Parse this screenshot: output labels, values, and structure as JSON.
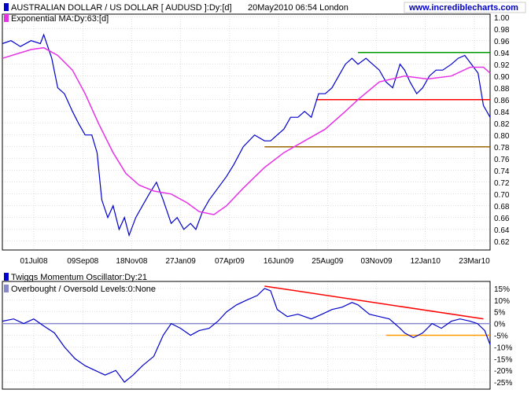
{
  "header": {
    "symbol_title": "AUSTRALIAN DOLLAR / US DOLLAR [ AUDUSD ]:Dy:[d]",
    "datetime": "20May2010 06:54 London",
    "site": "www.incrediblecharts.com",
    "ma_label": "Exponential MA:Dy:63:[d]"
  },
  "osc_header": {
    "osc_label": "Twiggs Momentum Oscillator:Dy:21",
    "levels_label": "Overbought / Oversold Levels:0:None"
  },
  "colors": {
    "price": "#0000cc",
    "ma": "#e633e6",
    "green_line": "#009900",
    "red_line": "#ff0000",
    "brown_line": "#996600",
    "orange_line": "#ff9900",
    "zero_line": "#8888cc",
    "grid": "#c0c0c0",
    "axis_text": "#000000"
  },
  "chart_data": [
    {
      "type": "line",
      "title": "AUSTRALIAN DOLLAR / US DOLLAR [ AUDUSD ]:Dy:[d]",
      "x_tick_labels": [
        "01Jul08",
        "09Sep08",
        "18Nov08",
        "27Jan09",
        "07Apr09",
        "16Jun09",
        "25Aug09",
        "03Nov09",
        "12Jan10",
        "23Mar10"
      ],
      "y_ticks": [
        "0.62",
        "0.64",
        "0.66",
        "0.68",
        "0.70",
        "0.72",
        "0.74",
        "0.76",
        "0.78",
        "0.80",
        "0.82",
        "0.84",
        "0.86",
        "0.88",
        "0.90",
        "0.92",
        "0.94",
        "0.96",
        "0.98",
        "1.00"
      ],
      "ylim": [
        0.605,
        1.005
      ],
      "xlim": [
        "2008-05-19",
        "2010-05-20"
      ],
      "series": [
        {
          "name": "AUSTRALIAN DOLLAR / US DOLLAR [ AUDUSD ]:Dy:[d]",
          "role": "price",
          "x": [
            "2008-05-19",
            "2008-06-01",
            "2008-06-15",
            "2008-07-01",
            "2008-07-15",
            "2008-07-20",
            "2008-08-01",
            "2008-08-10",
            "2008-08-20",
            "2008-09-01",
            "2008-09-10",
            "2008-09-20",
            "2008-09-30",
            "2008-10-08",
            "2008-10-15",
            "2008-10-24",
            "2008-11-01",
            "2008-11-10",
            "2008-11-18",
            "2008-11-25",
            "2008-12-05",
            "2008-12-15",
            "2008-12-25",
            "2009-01-05",
            "2009-01-15",
            "2009-01-27",
            "2009-02-05",
            "2009-02-15",
            "2009-02-25",
            "2009-03-05",
            "2009-03-15",
            "2009-03-25",
            "2009-04-07",
            "2009-04-20",
            "2009-05-01",
            "2009-05-15",
            "2009-06-01",
            "2009-06-16",
            "2009-06-25",
            "2009-07-05",
            "2009-07-15",
            "2009-07-25",
            "2009-08-05",
            "2009-08-15",
            "2009-08-25",
            "2009-09-05",
            "2009-09-15",
            "2009-09-25",
            "2009-10-05",
            "2009-10-15",
            "2009-10-25",
            "2009-11-03",
            "2009-11-15",
            "2009-11-25",
            "2009-12-05",
            "2009-12-15",
            "2009-12-25",
            "2010-01-05",
            "2010-01-12",
            "2010-01-20",
            "2010-01-30",
            "2010-02-08",
            "2010-02-18",
            "2010-02-28",
            "2010-03-10",
            "2010-03-23",
            "2010-04-02",
            "2010-04-12",
            "2010-04-22",
            "2010-05-02",
            "2010-05-10",
            "2010-05-20"
          ],
          "values": [
            0.955,
            0.96,
            0.95,
            0.96,
            0.955,
            0.97,
            0.93,
            0.88,
            0.87,
            0.84,
            0.82,
            0.8,
            0.8,
            0.77,
            0.69,
            0.66,
            0.68,
            0.64,
            0.66,
            0.63,
            0.66,
            0.68,
            0.7,
            0.72,
            0.69,
            0.65,
            0.66,
            0.64,
            0.65,
            0.64,
            0.67,
            0.69,
            0.71,
            0.73,
            0.75,
            0.78,
            0.8,
            0.79,
            0.79,
            0.8,
            0.81,
            0.83,
            0.83,
            0.84,
            0.83,
            0.87,
            0.87,
            0.88,
            0.9,
            0.92,
            0.93,
            0.92,
            0.93,
            0.92,
            0.91,
            0.89,
            0.88,
            0.92,
            0.91,
            0.89,
            0.87,
            0.88,
            0.9,
            0.91,
            0.91,
            0.92,
            0.93,
            0.935,
            0.92,
            0.905,
            0.85,
            0.83
          ]
        },
        {
          "name": "Exponential MA:Dy:63:[d]",
          "role": "ma",
          "x": [
            "2008-05-19",
            "2008-07-01",
            "2008-07-20",
            "2008-08-10",
            "2008-09-01",
            "2008-09-20",
            "2008-10-10",
            "2008-11-01",
            "2008-11-20",
            "2008-12-10",
            "2009-01-01",
            "2009-01-27",
            "2009-02-20",
            "2009-03-10",
            "2009-04-01",
            "2009-04-20",
            "2009-05-15",
            "2009-06-16",
            "2009-07-15",
            "2009-08-15",
            "2009-09-15",
            "2009-10-15",
            "2009-11-03",
            "2009-12-05",
            "2010-01-12",
            "2010-02-15",
            "2010-03-23",
            "2010-04-20",
            "2010-05-10",
            "2010-05-20"
          ],
          "values": [
            0.93,
            0.945,
            0.948,
            0.935,
            0.91,
            0.87,
            0.82,
            0.77,
            0.735,
            0.715,
            0.705,
            0.7,
            0.685,
            0.67,
            0.665,
            0.68,
            0.71,
            0.745,
            0.77,
            0.79,
            0.81,
            0.84,
            0.86,
            0.89,
            0.9,
            0.895,
            0.9,
            0.915,
            0.915,
            0.905
          ]
        }
      ],
      "lines": [
        {
          "role": "green_line",
          "x": [
            "2009-11-03",
            "2010-05-20"
          ],
          "value": 0.94
        },
        {
          "role": "red_line",
          "x": [
            "2009-09-01",
            "2010-05-20"
          ],
          "value": 0.86
        },
        {
          "role": "brown_line",
          "x": [
            "2009-06-16",
            "2010-05-20"
          ],
          "value": 0.78
        }
      ]
    },
    {
      "type": "line",
      "title": "Twiggs Momentum Oscillator:Dy:21",
      "y_ticks": [
        "-25%",
        "-20%",
        "-15%",
        "-10%",
        "-5%",
        "0%",
        "5%",
        "10%",
        "15%"
      ],
      "ylim": [
        -28,
        18
      ],
      "xlim": [
        "2008-05-19",
        "2010-05-20"
      ],
      "series": [
        {
          "name": "Twiggs Momentum Oscillator:Dy:21",
          "role": "price",
          "x": [
            "2008-05-19",
            "2008-06-05",
            "2008-06-20",
            "2008-07-05",
            "2008-07-20",
            "2008-08-05",
            "2008-08-20",
            "2008-09-05",
            "2008-09-20",
            "2008-10-05",
            "2008-10-20",
            "2008-11-05",
            "2008-11-18",
            "2008-12-01",
            "2008-12-15",
            "2009-01-01",
            "2009-01-15",
            "2009-01-27",
            "2009-02-10",
            "2009-02-25",
            "2009-03-10",
            "2009-03-25",
            "2009-04-07",
            "2009-04-20",
            "2009-05-05",
            "2009-05-20",
            "2009-06-05",
            "2009-06-16",
            "2009-06-25",
            "2009-07-05",
            "2009-07-20",
            "2009-08-05",
            "2009-08-25",
            "2009-09-10",
            "2009-09-25",
            "2009-10-10",
            "2009-10-25",
            "2009-11-03",
            "2009-11-20",
            "2009-12-05",
            "2009-12-20",
            "2010-01-05",
            "2010-01-12",
            "2010-01-25",
            "2010-02-08",
            "2010-02-22",
            "2010-03-08",
            "2010-03-23",
            "2010-04-05",
            "2010-04-20",
            "2010-05-01",
            "2010-05-12",
            "2010-05-20"
          ],
          "values": [
            1,
            2,
            0,
            2,
            -1,
            -4,
            -10,
            -15,
            -18,
            -20,
            -22,
            -20,
            -25,
            -22,
            -18,
            -14,
            -5,
            0,
            -2,
            -5,
            -3,
            -2,
            1,
            5,
            8,
            10,
            12,
            15,
            14,
            6,
            3,
            4,
            2,
            4,
            6,
            7,
            9,
            8,
            4,
            3,
            2,
            -2,
            -4,
            -6,
            -4,
            0,
            -2,
            1,
            2,
            1,
            0,
            -3,
            -9
          ]
        }
      ],
      "lines": [
        {
          "role": "zero_line",
          "x": [
            "2008-05-19",
            "2010-05-20"
          ],
          "value": 0
        },
        {
          "role": "red_line",
          "x": [
            "2009-06-16",
            "2010-05-10"
          ],
          "value_start": 16,
          "value_end": 2
        },
        {
          "role": "orange_line",
          "x": [
            "2009-12-15",
            "2010-05-20"
          ],
          "value": -5
        }
      ]
    }
  ]
}
